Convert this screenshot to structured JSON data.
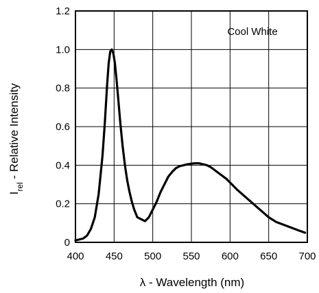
{
  "chart_data": {
    "type": "line",
    "xlabel": "λ - Wavelength (nm)",
    "ylabel_main": "I",
    "ylabel_sub": "rel",
    "ylabel_rest": " - Relative Intensity",
    "xlim": [
      400,
      700
    ],
    "ylim": [
      0,
      1.2
    ],
    "xticks": [
      "400",
      "450",
      "500",
      "550",
      "600",
      "650",
      "700"
    ],
    "yticks": [
      "0",
      "0.2",
      "0.4",
      "0.6",
      "0.8",
      "1.0",
      "1.2"
    ],
    "grid": true,
    "series": [
      {
        "name": "Cool White",
        "x": [
          400,
          405,
          410,
          415,
          420,
          425,
          430,
          435,
          438,
          441,
          443,
          445,
          447,
          449,
          451,
          453,
          455,
          458,
          461,
          464,
          467,
          470,
          473,
          476,
          480,
          485,
          490,
          495,
          500,
          505,
          510,
          515,
          520,
          525,
          530,
          535,
          540,
          545,
          550,
          555,
          560,
          565,
          570,
          575,
          580,
          585,
          590,
          595,
          600,
          610,
          620,
          630,
          640,
          650,
          660,
          670,
          680,
          690,
          697
        ],
        "y": [
          0.01,
          0.015,
          0.02,
          0.035,
          0.07,
          0.13,
          0.25,
          0.45,
          0.62,
          0.82,
          0.93,
          0.99,
          1.0,
          0.98,
          0.93,
          0.85,
          0.76,
          0.62,
          0.5,
          0.4,
          0.32,
          0.26,
          0.21,
          0.17,
          0.13,
          0.12,
          0.11,
          0.13,
          0.17,
          0.21,
          0.26,
          0.3,
          0.34,
          0.365,
          0.385,
          0.395,
          0.4,
          0.405,
          0.408,
          0.41,
          0.41,
          0.405,
          0.4,
          0.39,
          0.375,
          0.36,
          0.345,
          0.33,
          0.31,
          0.27,
          0.235,
          0.2,
          0.165,
          0.13,
          0.105,
          0.09,
          0.075,
          0.06,
          0.05
        ]
      }
    ]
  }
}
